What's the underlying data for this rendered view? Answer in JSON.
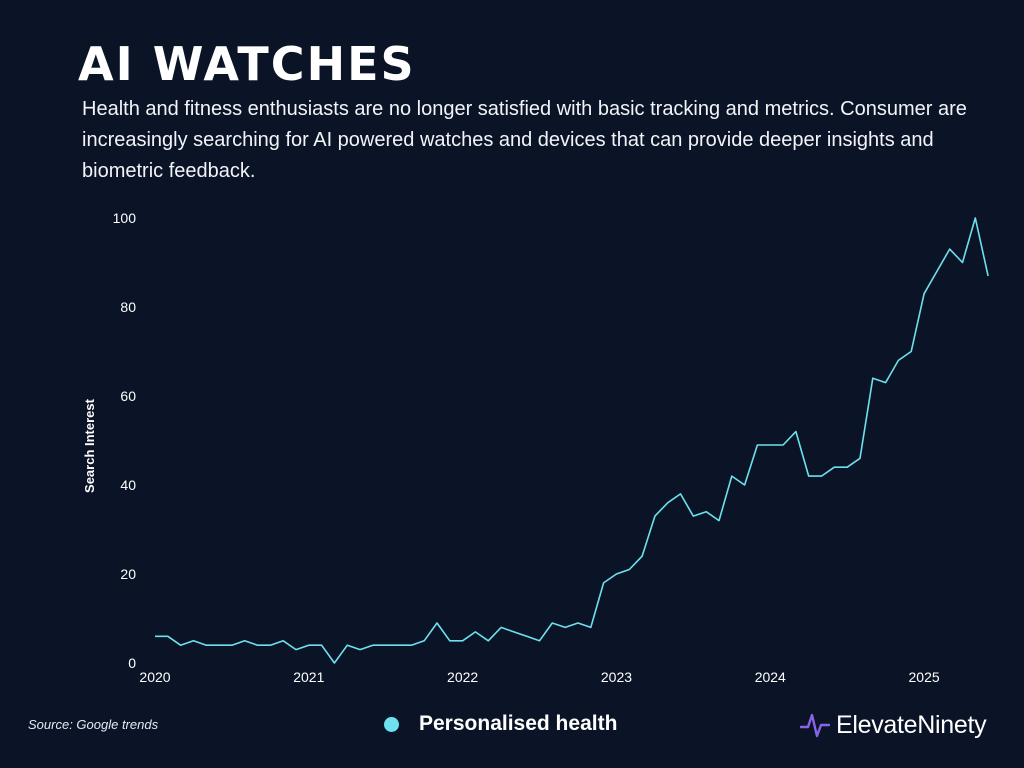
{
  "header": {
    "title": "AI WATCHES",
    "subtitle": "Health and fitness enthusiasts are no longer satisfied with basic tracking and metrics. Consumer are increasingly searching for AI powered watches and devices that can provide deeper insights and biometric feedback."
  },
  "footer": {
    "source": "Source: Google trends",
    "brand": "ElevateNinety"
  },
  "colors": {
    "background": "#0b1427",
    "series": "#6ee0ee",
    "logo_accent": "#8a63e8"
  },
  "chart_data": {
    "type": "line",
    "title": "AI WATCHES",
    "xlabel": "",
    "ylabel": "Search Interest",
    "ylim": [
      0,
      100
    ],
    "yticks": [
      0,
      20,
      40,
      60,
      80,
      100
    ],
    "xlim": [
      2020,
      2025.5
    ],
    "xticks": [
      2020,
      2021,
      2022,
      2023,
      2024,
      2025
    ],
    "xtick_labels": [
      "2020",
      "2021",
      "2022",
      "2023",
      "2024",
      "2025"
    ],
    "grid": false,
    "legend": "bottom-center",
    "series": [
      {
        "name": "Personalised health",
        "x_start": 2020,
        "step": 0.08333,
        "values": [
          6,
          6,
          4,
          5,
          4,
          4,
          4,
          5,
          4,
          4,
          5,
          3,
          4,
          4,
          0,
          4,
          3,
          4,
          4,
          4,
          4,
          5,
          9,
          5,
          5,
          7,
          5,
          8,
          7,
          6,
          5,
          9,
          8,
          9,
          8,
          18,
          20,
          21,
          24,
          33,
          36,
          38,
          33,
          34,
          32,
          42,
          40,
          49,
          49,
          49,
          52,
          42,
          42,
          44,
          44,
          46,
          64,
          63,
          68,
          70,
          83,
          88,
          93,
          90,
          100,
          87
        ]
      }
    ]
  }
}
